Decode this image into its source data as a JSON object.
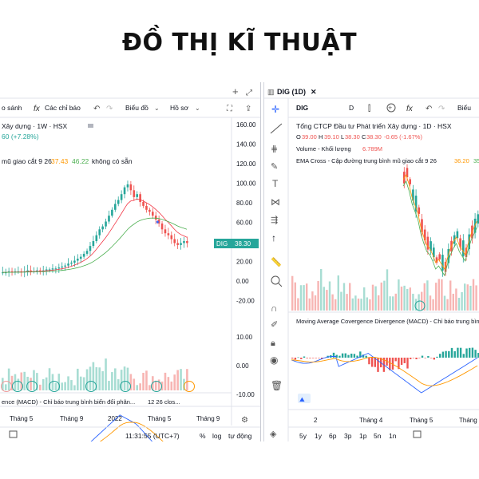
{
  "page_title": "ĐỒ THỊ KĨ THUẬT",
  "left_chart": {
    "toolbar": {
      "compare": "o sánh",
      "indicators": "Các chỉ báo",
      "chart_type": "Biểu đồ",
      "profile": "Hồ sơ"
    },
    "symbol_line": "Xây dựng · 1W · HSX",
    "change_line": "60 (+7.28%)",
    "ema_label": "mũ giao cắt 9 26",
    "ema_values": [
      "37.43",
      "46.22"
    ],
    "ema_na": "không có sẵn",
    "price_axis": [
      "160.00",
      "140.00",
      "120.00",
      "100.00",
      "80.00",
      "60.00",
      "40.00",
      "20.00",
      "0.00",
      "-20.00"
    ],
    "price_tag_symbol": "DIG",
    "price_tag_value": "38.30",
    "macd_label": "ence (MACD) - Chỉ báo trung bình biến đổi phân...",
    "macd_params": "12 26 clos...",
    "macd_axis": [
      "10.00",
      "0.00",
      "-10.00"
    ],
    "time_axis": [
      "Tháng 5",
      "Tháng 9",
      "2022",
      "Tháng 5",
      "Tháng 9"
    ],
    "clock": "11:31:55 (UTC+7)",
    "percent_btn": "%",
    "log_btn": "log",
    "auto_btn": "tự động"
  },
  "right_chart": {
    "tab": "DIG (1D)",
    "symbol": "DIG",
    "interval": "D",
    "title_line": "Tổng CTCP Đầu tư Phát triển Xây dựng · 1D · HSX",
    "ohlc": {
      "o": "39.00",
      "h": "39.10",
      "l": "38.30",
      "c": "38.30",
      "chg": "-0.65 (-1.67%)"
    },
    "volume_label": "Volume - Khối lượng",
    "volume_value": "6.789M",
    "ema_label": "EMA Cross - Cập đường trung bình mũ giao cắt 9 26",
    "ema_values": [
      "36.20",
      "35"
    ],
    "macd_label": "Moving Average Covergence Divergence (MACD) - Chỉ báo trung bình",
    "time_axis": [
      "2",
      "Tháng 4",
      "Tháng 5",
      "Tháng"
    ],
    "ranges": [
      "5y",
      "1y",
      "6p",
      "3p",
      "1p",
      "5n",
      "1n"
    ],
    "chart_type_btn": "Biểu"
  },
  "colors": {
    "up": "#26a69a",
    "down": "#ef5350",
    "blue": "#2962ff",
    "orange": "#ff9800",
    "green_line": "#4caf50",
    "red_line": "#f23645"
  }
}
